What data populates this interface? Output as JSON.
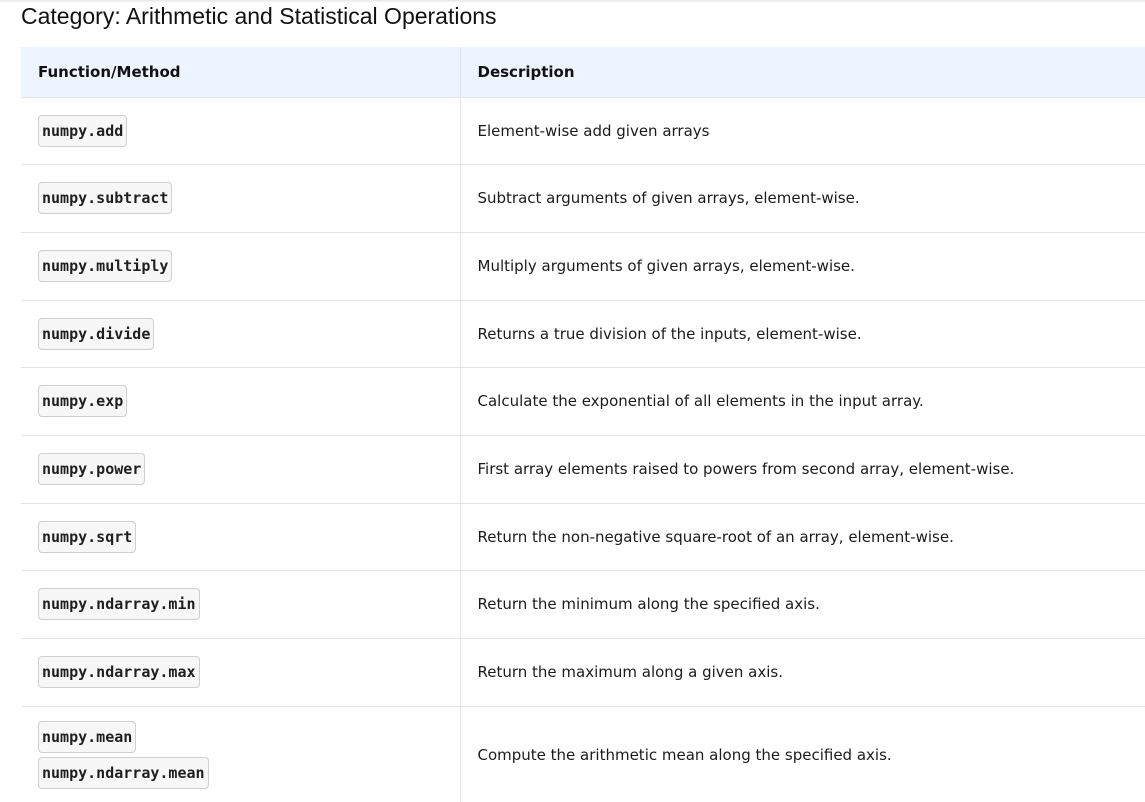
{
  "heading": "Category: Arithmetic and Statistical Operations",
  "table": {
    "headers": {
      "function": "Function/Method",
      "description": "Description"
    },
    "rows": [
      {
        "functions": [
          "numpy.add"
        ],
        "description": "Element-wise add given arrays"
      },
      {
        "functions": [
          "numpy.subtract"
        ],
        "description": "Subtract arguments of given arrays, element-wise."
      },
      {
        "functions": [
          "numpy.multiply"
        ],
        "description": "Multiply arguments of given arrays, element-wise."
      },
      {
        "functions": [
          "numpy.divide"
        ],
        "description": "Returns a true division of the inputs, element-wise."
      },
      {
        "functions": [
          "numpy.exp"
        ],
        "description": "Calculate the exponential of all elements in the input array."
      },
      {
        "functions": [
          "numpy.power"
        ],
        "description": "First array elements raised to powers from second array, element-wise."
      },
      {
        "functions": [
          "numpy.sqrt"
        ],
        "description": "Return the non-negative square-root of an array, element-wise."
      },
      {
        "functions": [
          "numpy.ndarray.min"
        ],
        "description": "Return the minimum along the specified axis."
      },
      {
        "functions": [
          "numpy.ndarray.max"
        ],
        "description": "Return the maximum along a given axis."
      },
      {
        "functions": [
          "numpy.mean",
          "numpy.ndarray.mean"
        ],
        "description": "Compute the arithmetic mean along the specified axis."
      }
    ]
  }
}
